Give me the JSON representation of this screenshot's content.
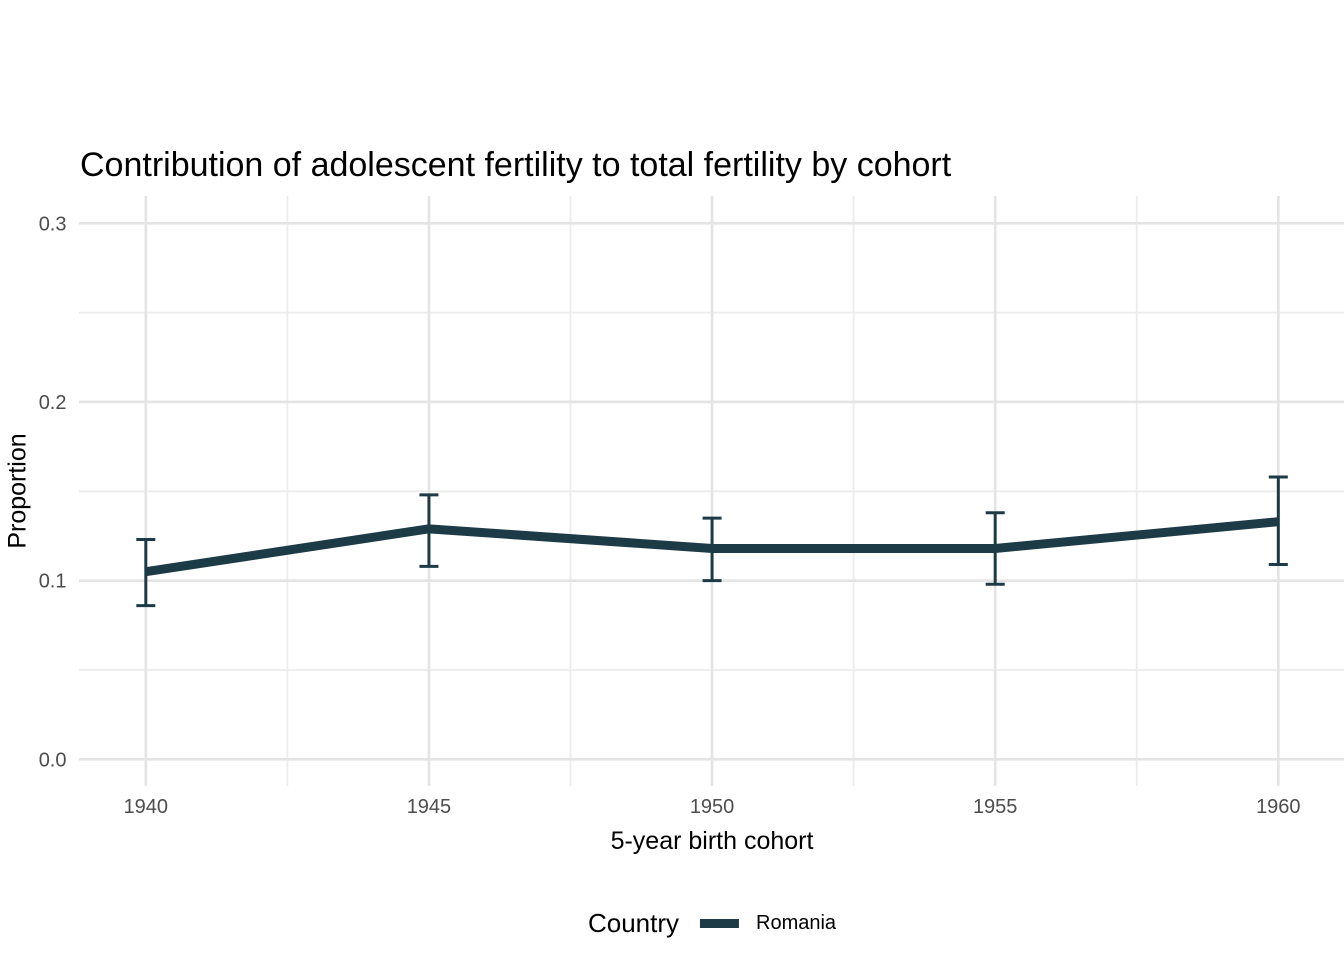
{
  "chart_data": {
    "type": "line",
    "title": "Contribution of adolescent fertility to total fertility by cohort",
    "xlabel": "5-year birth cohort",
    "ylabel": "Proportion",
    "x": [
      1940,
      1945,
      1950,
      1955,
      1960
    ],
    "x_tick_labels": [
      "1940",
      "1945",
      "1950",
      "1955",
      "1960"
    ],
    "y_ticks": [
      0.0,
      0.1,
      0.2,
      0.3
    ],
    "y_tick_labels": [
      "0.0",
      "0.1",
      "0.2",
      "0.3"
    ],
    "x_minor_ticks": [
      1942.5,
      1947.5,
      1952.5,
      1957.5
    ],
    "y_minor_ticks": [
      0.05,
      0.15,
      0.25
    ],
    "xlim": [
      1938.82,
      1961.16
    ],
    "ylim": [
      -0.01494,
      0.31528
    ],
    "grid": {
      "major": true,
      "minor": true,
      "background": "#ffffff"
    },
    "series": [
      {
        "name": "Romania",
        "color": "#1d3b46",
        "values": [
          0.105,
          0.129,
          0.118,
          0.118,
          0.133
        ],
        "ci_low": [
          0.086,
          0.108,
          0.1,
          0.098,
          0.109
        ],
        "ci_high": [
          0.123,
          0.148,
          0.135,
          0.138,
          0.158
        ]
      }
    ],
    "legend": {
      "title": "Country",
      "position": "bottom",
      "items": [
        {
          "label": "Romania",
          "color": "#1d3b46"
        }
      ]
    }
  },
  "colors": {
    "title_text": "#000000",
    "tick_text": "#4d4d4d",
    "grid_major": "#e4e4e4",
    "grid_minor": "#ececec",
    "series": "#1d3b46"
  }
}
